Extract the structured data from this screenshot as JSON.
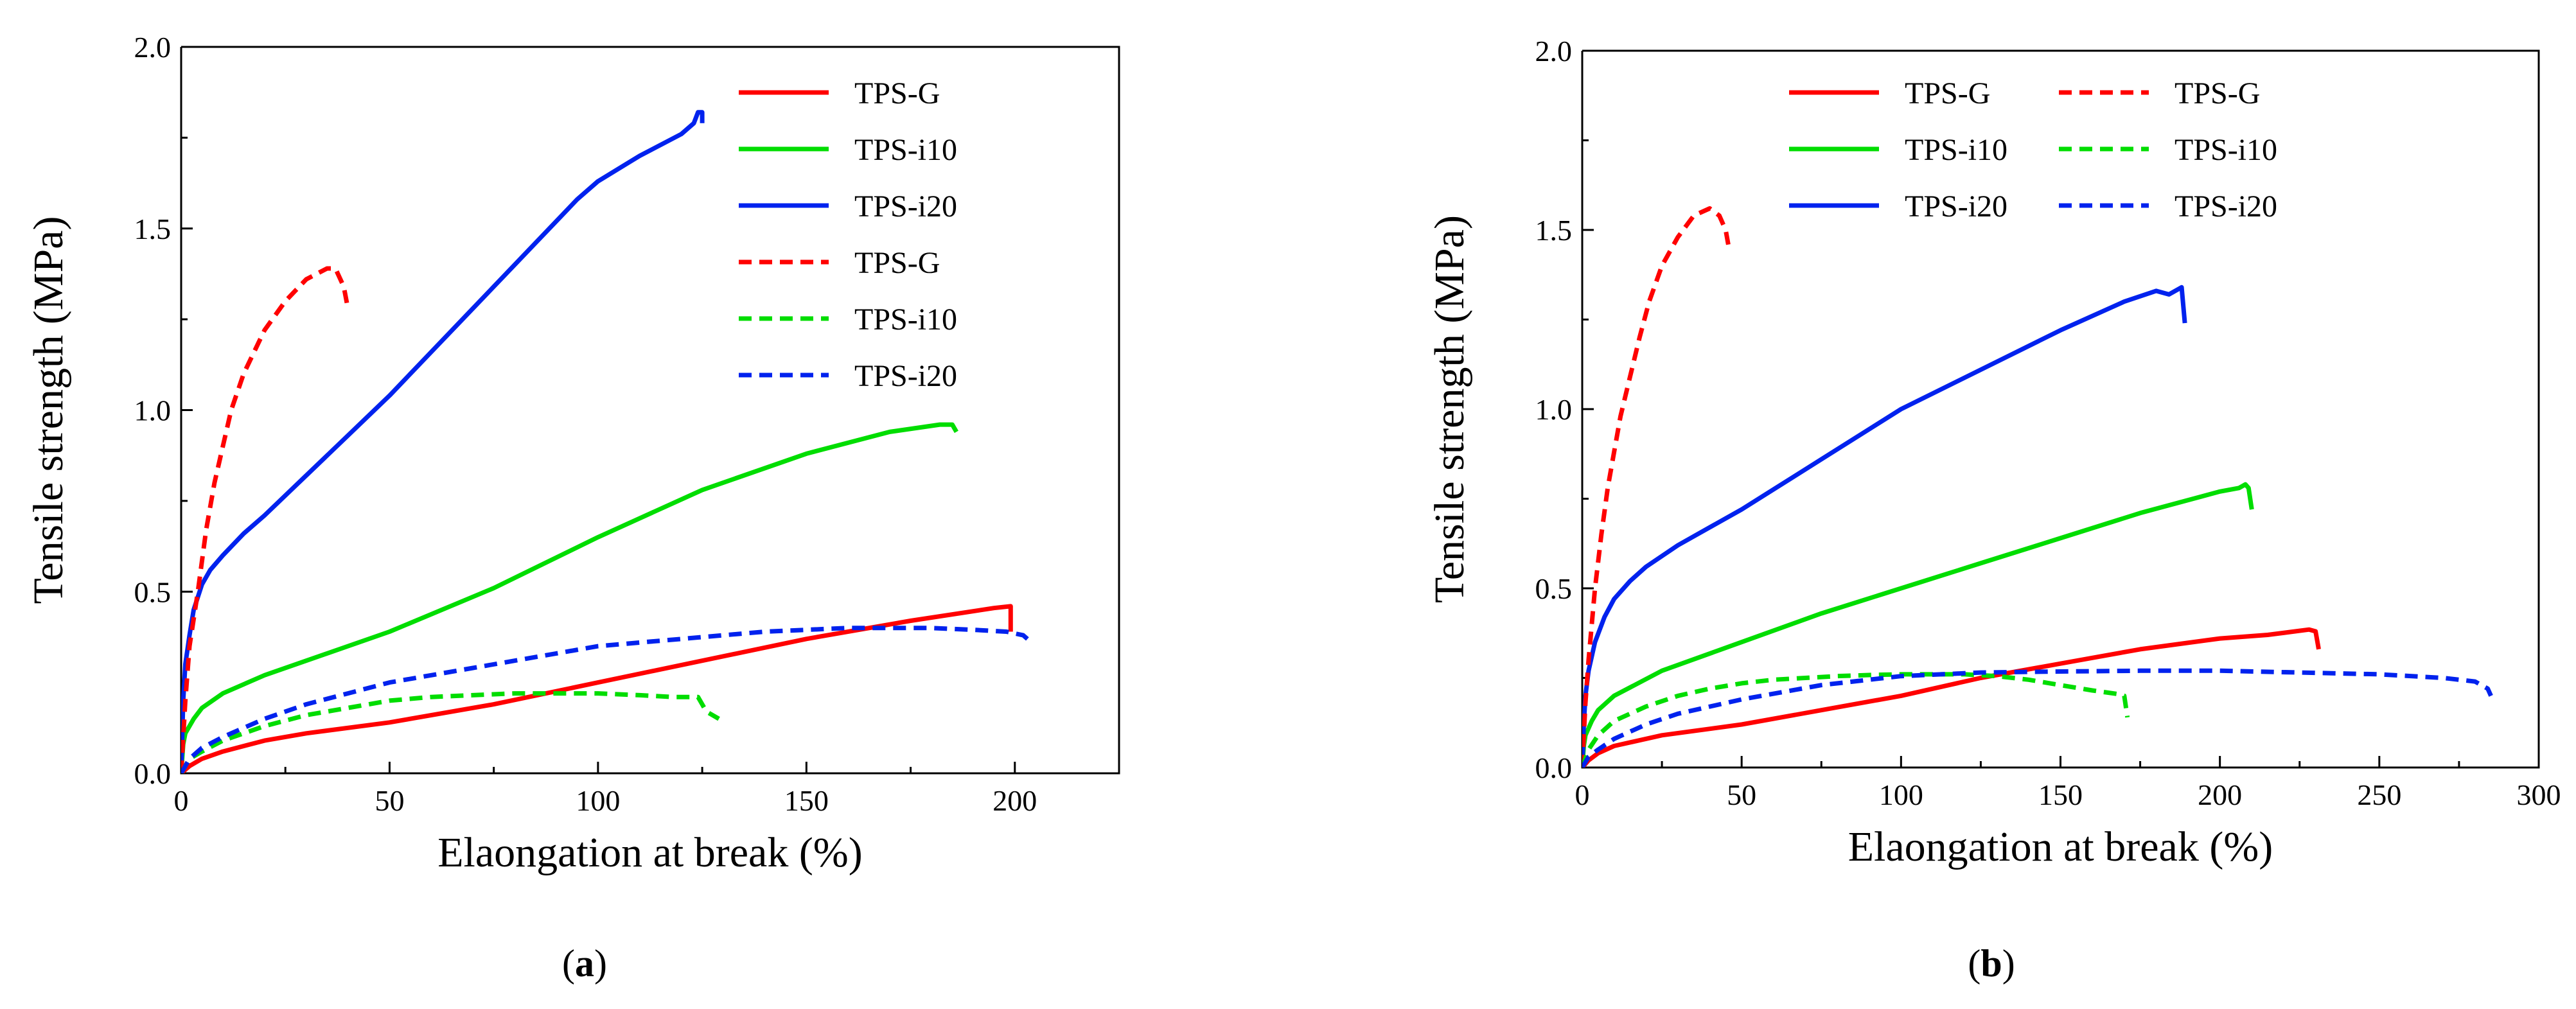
{
  "figure": {
    "panel_labels": [
      "a",
      "b"
    ]
  },
  "chart_data": [
    {
      "type": "line",
      "panel": "a",
      "xlabel": "Elaongation at break (%)",
      "ylabel": "Tensile strength (MPa)",
      "xlim": [
        0,
        225
      ],
      "ylim": [
        0,
        2.0
      ],
      "xticks": [
        0,
        50,
        100,
        150,
        200
      ],
      "yticks": [
        0.0,
        0.5,
        1.0,
        1.5,
        2.0
      ],
      "ytick_labels": [
        "0.0",
        "0.5",
        "1.0",
        "1.5",
        "2.0"
      ],
      "grid": false,
      "legend": {
        "placement": "top-right",
        "columns": 1
      },
      "series": [
        {
          "name": "TPS-G",
          "color": "#ff0000",
          "dash": "solid",
          "x": [
            0,
            2,
            5,
            10,
            20,
            30,
            50,
            75,
            100,
            125,
            150,
            175,
            195,
            199,
            199
          ],
          "y": [
            0,
            0.02,
            0.04,
            0.06,
            0.09,
            0.11,
            0.14,
            0.19,
            0.25,
            0.31,
            0.37,
            0.42,
            0.455,
            0.46,
            0.39
          ]
        },
        {
          "name": "TPS-i10",
          "color": "#00dd00",
          "dash": "solid",
          "x": [
            0,
            0.5,
            1,
            3,
            5,
            10,
            20,
            30,
            50,
            75,
            100,
            125,
            150,
            170,
            182,
            185,
            186
          ],
          "y": [
            0,
            0.08,
            0.11,
            0.15,
            0.18,
            0.22,
            0.27,
            0.31,
            0.39,
            0.51,
            0.65,
            0.78,
            0.88,
            0.94,
            0.96,
            0.96,
            0.94
          ]
        },
        {
          "name": "TPS-i20",
          "color": "#0022ee",
          "dash": "solid",
          "x": [
            0,
            0.5,
            1,
            2,
            3,
            5,
            7,
            10,
            15,
            20,
            30,
            40,
            50,
            60,
            70,
            80,
            90,
            95,
            100,
            110,
            120,
            123,
            124,
            125,
            125
          ],
          "y": [
            0,
            0.2,
            0.3,
            0.38,
            0.45,
            0.52,
            0.56,
            0.6,
            0.66,
            0.71,
            0.82,
            0.93,
            1.04,
            1.16,
            1.28,
            1.4,
            1.52,
            1.58,
            1.63,
            1.7,
            1.76,
            1.79,
            1.82,
            1.82,
            1.79
          ]
        },
        {
          "name": "TPS-G",
          "color": "#ff0000",
          "dash": "dashed",
          "x": [
            0,
            1,
            2,
            4,
            6,
            8,
            10,
            12,
            15,
            20,
            25,
            30,
            35,
            37,
            39,
            40
          ],
          "y": [
            0,
            0.2,
            0.35,
            0.5,
            0.67,
            0.8,
            0.9,
            1.0,
            1.1,
            1.22,
            1.3,
            1.36,
            1.39,
            1.39,
            1.34,
            1.28
          ]
        },
        {
          "name": "TPS-i10",
          "color": "#00dd00",
          "dash": "dashed",
          "x": [
            0,
            2,
            5,
            10,
            20,
            30,
            40,
            50,
            60,
            70,
            80,
            90,
            100,
            110,
            118,
            124,
            126,
            129
          ],
          "y": [
            0,
            0.04,
            0.06,
            0.09,
            0.13,
            0.16,
            0.18,
            0.2,
            0.21,
            0.215,
            0.22,
            0.22,
            0.22,
            0.215,
            0.21,
            0.21,
            0.17,
            0.15
          ]
        },
        {
          "name": "TPS-i20",
          "color": "#0022ee",
          "dash": "dashed",
          "x": [
            0,
            2,
            5,
            10,
            20,
            30,
            40,
            50,
            60,
            70,
            80,
            90,
            100,
            110,
            120,
            130,
            140,
            150,
            160,
            170,
            180,
            190,
            198,
            202,
            204
          ],
          "y": [
            0,
            0.04,
            0.07,
            0.1,
            0.15,
            0.19,
            0.22,
            0.25,
            0.27,
            0.29,
            0.31,
            0.33,
            0.35,
            0.36,
            0.37,
            0.38,
            0.39,
            0.395,
            0.4,
            0.4,
            0.4,
            0.395,
            0.39,
            0.38,
            0.36
          ]
        }
      ]
    },
    {
      "type": "line",
      "panel": "b",
      "xlabel": "Elaongation at break (%)",
      "ylabel": "Tensile strength (MPa)",
      "xlim": [
        0,
        300
      ],
      "ylim": [
        0,
        2.0
      ],
      "xticks": [
        0,
        50,
        100,
        150,
        200,
        250,
        300
      ],
      "yticks": [
        0.0,
        0.5,
        1.0,
        1.5,
        2.0
      ],
      "ytick_labels": [
        "0.0",
        "0.5",
        "1.0",
        "1.5",
        "2.0"
      ],
      "grid": false,
      "legend": {
        "placement": "top-right",
        "columns": 2
      },
      "series": [
        {
          "name": "TPS-G",
          "color": "#ff0000",
          "dash": "solid",
          "x": [
            0,
            2,
            5,
            10,
            25,
            50,
            75,
            100,
            125,
            150,
            175,
            200,
            215,
            228,
            230,
            231
          ],
          "y": [
            0,
            0.02,
            0.04,
            0.06,
            0.09,
            0.12,
            0.16,
            0.2,
            0.25,
            0.29,
            0.33,
            0.36,
            0.37,
            0.385,
            0.38,
            0.33
          ]
        },
        {
          "name": "TPS-i10",
          "color": "#00dd00",
          "dash": "solid",
          "x": [
            0,
            0.5,
            1,
            3,
            5,
            10,
            25,
            50,
            75,
            100,
            125,
            150,
            175,
            200,
            206,
            208,
            209,
            210
          ],
          "y": [
            0,
            0.06,
            0.09,
            0.13,
            0.16,
            0.2,
            0.27,
            0.35,
            0.43,
            0.5,
            0.57,
            0.64,
            0.71,
            0.77,
            0.78,
            0.79,
            0.78,
            0.72
          ]
        },
        {
          "name": "TPS-i20",
          "color": "#0022ee",
          "dash": "solid",
          "x": [
            0,
            0.5,
            1,
            2,
            4,
            7,
            10,
            15,
            20,
            30,
            40,
            50,
            75,
            100,
            125,
            150,
            170,
            180,
            184,
            188,
            189
          ],
          "y": [
            0,
            0.12,
            0.2,
            0.27,
            0.35,
            0.42,
            0.47,
            0.52,
            0.56,
            0.62,
            0.67,
            0.72,
            0.86,
            1.0,
            1.11,
            1.22,
            1.3,
            1.33,
            1.32,
            1.34,
            1.24
          ]
        },
        {
          "name": "TPS-G",
          "color": "#ff0000",
          "dash": "dashed",
          "x": [
            0,
            1,
            2,
            3,
            4,
            6,
            8,
            10,
            12,
            15,
            18,
            21,
            25,
            30,
            35,
            40,
            43,
            45,
            46
          ],
          "y": [
            0,
            0.18,
            0.3,
            0.4,
            0.5,
            0.65,
            0.78,
            0.88,
            0.98,
            1.09,
            1.2,
            1.3,
            1.4,
            1.48,
            1.54,
            1.56,
            1.54,
            1.5,
            1.45
          ]
        },
        {
          "name": "TPS-i10",
          "color": "#00dd00",
          "dash": "dashed",
          "x": [
            0,
            2,
            5,
            10,
            20,
            30,
            40,
            50,
            60,
            70,
            80,
            90,
            100,
            110,
            120,
            130,
            140,
            150,
            160,
            168,
            170,
            171
          ],
          "y": [
            0,
            0.05,
            0.09,
            0.13,
            0.17,
            0.2,
            0.22,
            0.235,
            0.245,
            0.25,
            0.255,
            0.258,
            0.26,
            0.26,
            0.26,
            0.255,
            0.245,
            0.23,
            0.215,
            0.205,
            0.2,
            0.14
          ]
        },
        {
          "name": "TPS-i20",
          "color": "#0022ee",
          "dash": "dashed",
          "x": [
            0,
            2,
            5,
            10,
            20,
            30,
            50,
            75,
            100,
            125,
            150,
            175,
            200,
            225,
            250,
            270,
            280,
            284,
            285
          ],
          "y": [
            0,
            0.03,
            0.05,
            0.08,
            0.12,
            0.15,
            0.19,
            0.23,
            0.255,
            0.265,
            0.268,
            0.27,
            0.27,
            0.265,
            0.26,
            0.25,
            0.24,
            0.22,
            0.2
          ]
        }
      ]
    }
  ]
}
